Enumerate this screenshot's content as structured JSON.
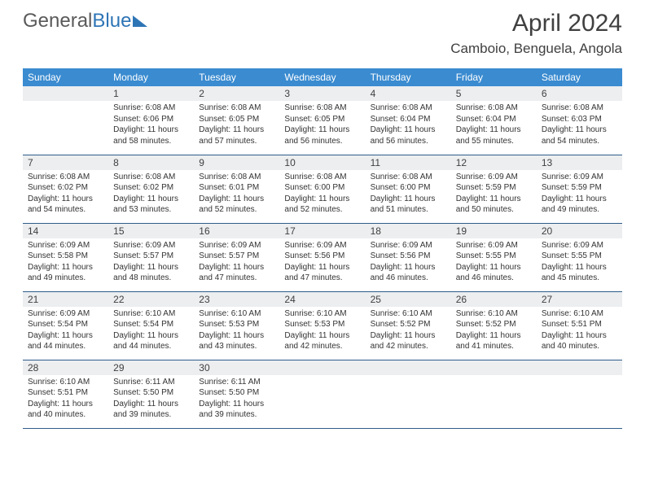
{
  "brand": {
    "part1": "General",
    "part2": "Blue"
  },
  "title": "April 2024",
  "location": "Camboio, Benguela, Angola",
  "style": {
    "header_bg": "#3a8bd0",
    "header_fg": "#ffffff",
    "daynum_bg": "#eceef0",
    "row_border": "#2e5d8a",
    "brand_gray": "#5a5a5a",
    "brand_blue": "#2e75b6",
    "text_color": "#333333",
    "title_fontsize": 30,
    "location_fontsize": 17,
    "th_fontsize": 12,
    "cell_fontsize": 10
  },
  "weekdays": [
    "Sunday",
    "Monday",
    "Tuesday",
    "Wednesday",
    "Thursday",
    "Friday",
    "Saturday"
  ],
  "first_weekday_index": 1,
  "days": [
    {
      "n": 1,
      "sunrise": "6:08 AM",
      "sunset": "6:06 PM",
      "daylight": "11 hours and 58 minutes."
    },
    {
      "n": 2,
      "sunrise": "6:08 AM",
      "sunset": "6:05 PM",
      "daylight": "11 hours and 57 minutes."
    },
    {
      "n": 3,
      "sunrise": "6:08 AM",
      "sunset": "6:05 PM",
      "daylight": "11 hours and 56 minutes."
    },
    {
      "n": 4,
      "sunrise": "6:08 AM",
      "sunset": "6:04 PM",
      "daylight": "11 hours and 56 minutes."
    },
    {
      "n": 5,
      "sunrise": "6:08 AM",
      "sunset": "6:04 PM",
      "daylight": "11 hours and 55 minutes."
    },
    {
      "n": 6,
      "sunrise": "6:08 AM",
      "sunset": "6:03 PM",
      "daylight": "11 hours and 54 minutes."
    },
    {
      "n": 7,
      "sunrise": "6:08 AM",
      "sunset": "6:02 PM",
      "daylight": "11 hours and 54 minutes."
    },
    {
      "n": 8,
      "sunrise": "6:08 AM",
      "sunset": "6:02 PM",
      "daylight": "11 hours and 53 minutes."
    },
    {
      "n": 9,
      "sunrise": "6:08 AM",
      "sunset": "6:01 PM",
      "daylight": "11 hours and 52 minutes."
    },
    {
      "n": 10,
      "sunrise": "6:08 AM",
      "sunset": "6:00 PM",
      "daylight": "11 hours and 52 minutes."
    },
    {
      "n": 11,
      "sunrise": "6:08 AM",
      "sunset": "6:00 PM",
      "daylight": "11 hours and 51 minutes."
    },
    {
      "n": 12,
      "sunrise": "6:09 AM",
      "sunset": "5:59 PM",
      "daylight": "11 hours and 50 minutes."
    },
    {
      "n": 13,
      "sunrise": "6:09 AM",
      "sunset": "5:59 PM",
      "daylight": "11 hours and 49 minutes."
    },
    {
      "n": 14,
      "sunrise": "6:09 AM",
      "sunset": "5:58 PM",
      "daylight": "11 hours and 49 minutes."
    },
    {
      "n": 15,
      "sunrise": "6:09 AM",
      "sunset": "5:57 PM",
      "daylight": "11 hours and 48 minutes."
    },
    {
      "n": 16,
      "sunrise": "6:09 AM",
      "sunset": "5:57 PM",
      "daylight": "11 hours and 47 minutes."
    },
    {
      "n": 17,
      "sunrise": "6:09 AM",
      "sunset": "5:56 PM",
      "daylight": "11 hours and 47 minutes."
    },
    {
      "n": 18,
      "sunrise": "6:09 AM",
      "sunset": "5:56 PM",
      "daylight": "11 hours and 46 minutes."
    },
    {
      "n": 19,
      "sunrise": "6:09 AM",
      "sunset": "5:55 PM",
      "daylight": "11 hours and 46 minutes."
    },
    {
      "n": 20,
      "sunrise": "6:09 AM",
      "sunset": "5:55 PM",
      "daylight": "11 hours and 45 minutes."
    },
    {
      "n": 21,
      "sunrise": "6:09 AM",
      "sunset": "5:54 PM",
      "daylight": "11 hours and 44 minutes."
    },
    {
      "n": 22,
      "sunrise": "6:10 AM",
      "sunset": "5:54 PM",
      "daylight": "11 hours and 44 minutes."
    },
    {
      "n": 23,
      "sunrise": "6:10 AM",
      "sunset": "5:53 PM",
      "daylight": "11 hours and 43 minutes."
    },
    {
      "n": 24,
      "sunrise": "6:10 AM",
      "sunset": "5:53 PM",
      "daylight": "11 hours and 42 minutes."
    },
    {
      "n": 25,
      "sunrise": "6:10 AM",
      "sunset": "5:52 PM",
      "daylight": "11 hours and 42 minutes."
    },
    {
      "n": 26,
      "sunrise": "6:10 AM",
      "sunset": "5:52 PM",
      "daylight": "11 hours and 41 minutes."
    },
    {
      "n": 27,
      "sunrise": "6:10 AM",
      "sunset": "5:51 PM",
      "daylight": "11 hours and 40 minutes."
    },
    {
      "n": 28,
      "sunrise": "6:10 AM",
      "sunset": "5:51 PM",
      "daylight": "11 hours and 40 minutes."
    },
    {
      "n": 29,
      "sunrise": "6:11 AM",
      "sunset": "5:50 PM",
      "daylight": "11 hours and 39 minutes."
    },
    {
      "n": 30,
      "sunrise": "6:11 AM",
      "sunset": "5:50 PM",
      "daylight": "11 hours and 39 minutes."
    }
  ],
  "labels": {
    "sunrise": "Sunrise:",
    "sunset": "Sunset:",
    "daylight": "Daylight:"
  }
}
